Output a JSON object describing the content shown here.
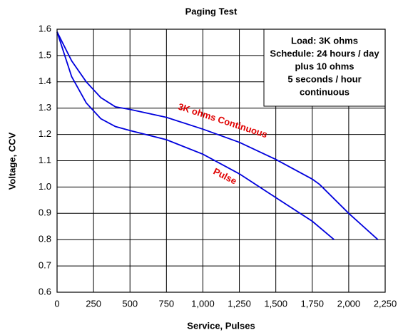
{
  "chart_data": {
    "type": "line",
    "title": "Paging Test",
    "xlabel": "Service, Pulses",
    "ylabel": "Voltage, CCV",
    "xlim": [
      0,
      2250
    ],
    "xticks": [
      0,
      250,
      500,
      750,
      {
        "value": 1000,
        "label": "1,000"
      },
      {
        "value": 1250,
        "label": "1,250"
      },
      {
        "value": 1500,
        "label": "1,500"
      },
      {
        "value": 1750,
        "label": "1,750"
      },
      {
        "value": 2000,
        "label": "2,000"
      },
      {
        "value": 2250,
        "label": "2,250"
      }
    ],
    "ylim": [
      0.6,
      1.6
    ],
    "yticks": [
      0.6,
      0.7,
      0.8,
      0.9,
      {
        "value": 1,
        "label": "1.0"
      },
      1.1,
      1.2,
      1.3,
      1.4,
      1.5,
      1.6
    ],
    "grid": true,
    "annotation": [
      "Load: 3K ohms",
      "Schedule: 24 hours / day",
      "plus 10 ohms",
      "5 seconds / hour",
      "continuous"
    ],
    "series": [
      {
        "name": "3K ohms Continuous",
        "color": "#0000dd",
        "label_color": "#e00000",
        "x": [
          0,
          100,
          200,
          300,
          400,
          500,
          750,
          1000,
          1250,
          1500,
          1750,
          1800,
          2000,
          2200
        ],
        "values": [
          1.59,
          1.48,
          1.4,
          1.34,
          1.305,
          1.295,
          1.265,
          1.22,
          1.17,
          1.105,
          1.03,
          1.01,
          0.9,
          0.8
        ]
      },
      {
        "name": "Pulse",
        "color": "#0000dd",
        "label_color": "#e00000",
        "x": [
          0,
          100,
          200,
          300,
          400,
          500,
          750,
          1000,
          1250,
          1500,
          1750,
          1900
        ],
        "values": [
          1.59,
          1.42,
          1.32,
          1.26,
          1.23,
          1.215,
          1.18,
          1.125,
          1.05,
          0.96,
          0.87,
          0.8
        ]
      }
    ]
  }
}
